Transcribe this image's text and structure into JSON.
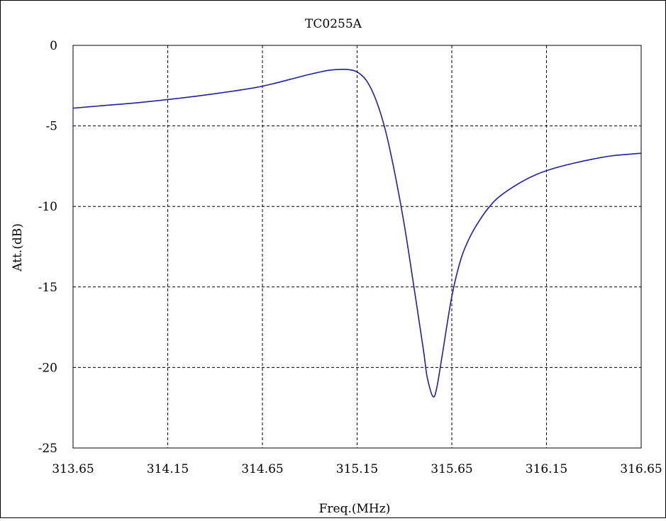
{
  "chart_data": {
    "type": "line",
    "title": "TC0255A",
    "xlabel": "Freq.(MHz)",
    "ylabel": "Att.(dB)",
    "xlim": [
      313.65,
      316.65
    ],
    "ylim": [
      -25,
      0
    ],
    "x_ticks": [
      "313.65",
      "314.15",
      "314.65",
      "315.15",
      "315.65",
      "316.15",
      "316.65"
    ],
    "y_ticks": [
      "0",
      "-5",
      "-10",
      "-15",
      "-20",
      "-25"
    ],
    "grid": true,
    "series": [
      {
        "color": "#1f1fa0",
        "x": [
          313.65,
          313.8,
          314.0,
          314.2,
          314.4,
          314.6,
          314.7,
          314.8,
          314.9,
          315.0,
          315.05,
          315.1,
          315.15,
          315.2,
          315.25,
          315.3,
          315.35,
          315.4,
          315.45,
          315.5,
          315.52,
          315.55,
          315.57,
          315.6,
          315.65,
          315.7,
          315.75,
          315.8,
          315.85,
          315.9,
          316.0,
          316.1,
          316.2,
          316.3,
          316.4,
          316.5,
          316.65
        ],
        "y": [
          -3.9,
          -3.75,
          -3.55,
          -3.3,
          -3.0,
          -2.65,
          -2.4,
          -2.1,
          -1.8,
          -1.55,
          -1.5,
          -1.5,
          -1.65,
          -2.2,
          -3.4,
          -5.3,
          -8.0,
          -11.2,
          -15.0,
          -18.9,
          -20.6,
          -21.8,
          -21.3,
          -19.2,
          -15.6,
          -13.2,
          -11.8,
          -10.8,
          -10.0,
          -9.4,
          -8.6,
          -8.0,
          -7.6,
          -7.3,
          -7.05,
          -6.85,
          -6.7
        ]
      }
    ]
  }
}
